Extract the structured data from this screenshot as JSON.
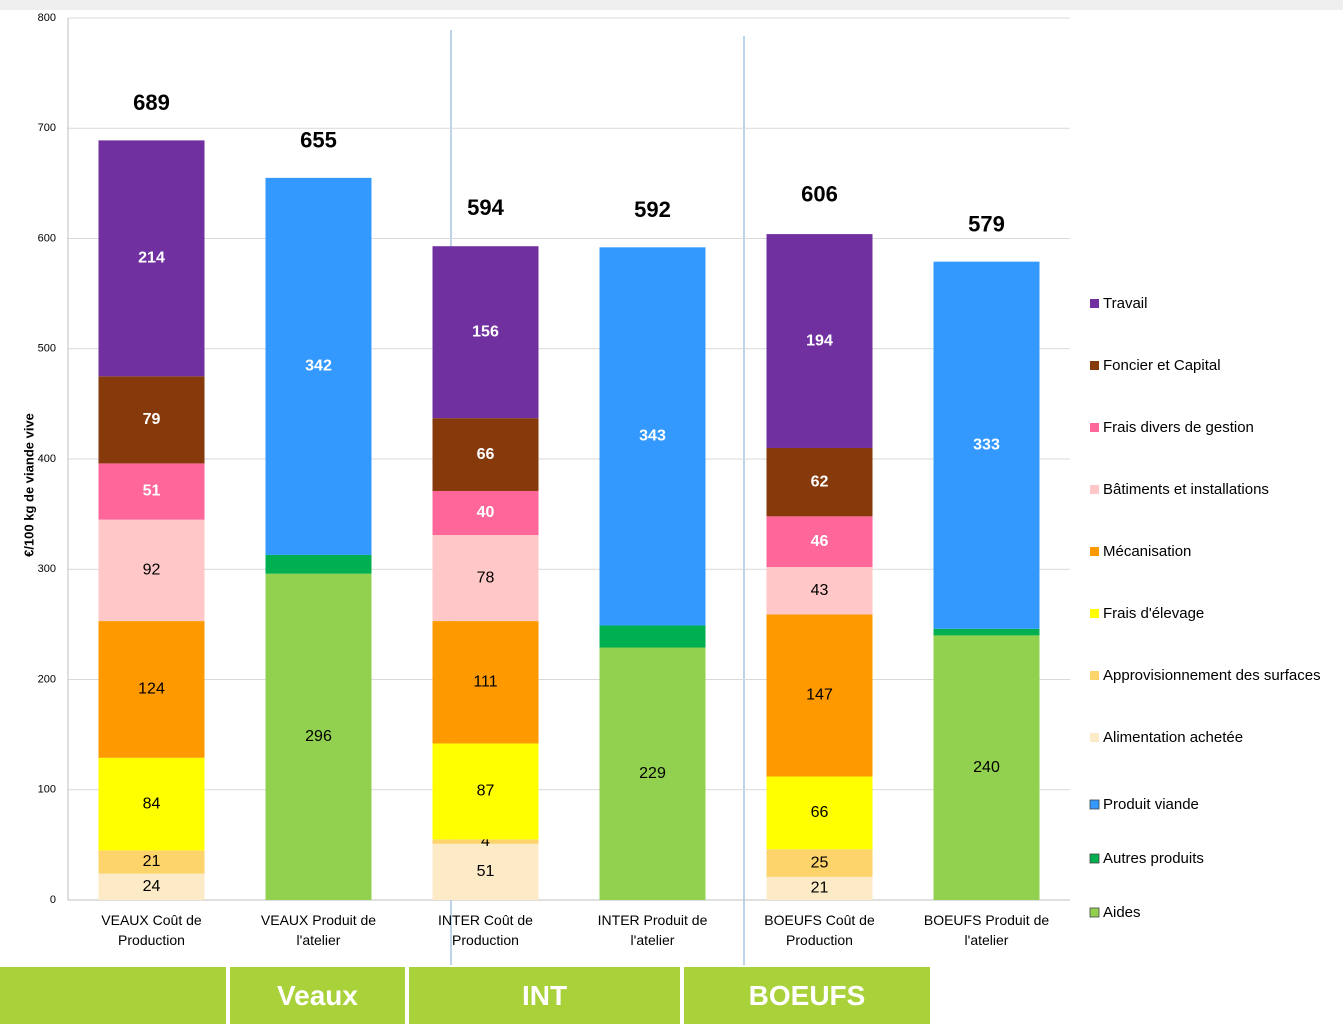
{
  "chart_data": {
    "type": "stacked_bar",
    "y_label": "€/100 kg de viande vive",
    "categories": [
      "VEAUX Coût de Production",
      "VEAUX Produit de l'atelier",
      "INTER Coût de Production",
      "INTER Produit de l'atelier",
      "BOEUFS Coût de Production",
      "BOEUFS Produit de l'atelier"
    ],
    "totals": [
      689,
      655,
      594,
      592,
      606,
      579
    ],
    "series": [
      {
        "name": "Alimentation achetée",
        "color": "#fdebc8",
        "label_color": "#000000",
        "values": [
          24,
          null,
          51,
          null,
          21,
          null
        ]
      },
      {
        "name": "Approvisionnement des surfaces",
        "color": "#fdd36b",
        "label_color": "#000000",
        "values": [
          21,
          null,
          4,
          null,
          25,
          null
        ]
      },
      {
        "name": "Frais d'élevage",
        "color": "#ffff00",
        "label_color": "#000000",
        "values": [
          84,
          null,
          87,
          null,
          66,
          null
        ]
      },
      {
        "name": "Mécanisation",
        "color": "#ff9900",
        "label_color": "#000000",
        "values": [
          124,
          null,
          111,
          null,
          147,
          null
        ]
      },
      {
        "name": "Bâtiments et installations",
        "color": "#ffc7c7",
        "label_color": "#000000",
        "values": [
          92,
          null,
          78,
          null,
          43,
          null
        ]
      },
      {
        "name": "Frais divers de gestion",
        "color": "#ff6699",
        "label_color": "#ffffff",
        "values": [
          51,
          null,
          40,
          null,
          46,
          null
        ]
      },
      {
        "name": "Foncier et Capital",
        "color": "#86390a",
        "label_color": "#ffffff",
        "values": [
          79,
          null,
          66,
          null,
          62,
          null
        ]
      },
      {
        "name": "Travail",
        "color": "#7030a0",
        "label_color": "#ffffff",
        "values": [
          214,
          null,
          156,
          null,
          194,
          null
        ]
      },
      {
        "name": "Aides",
        "color": "#92d050",
        "label_color": "#000000",
        "values": [
          null,
          296,
          null,
          229,
          null,
          240
        ]
      },
      {
        "name": "Autres produits",
        "color": "#00b050",
        "show_labels": false,
        "values": [
          null,
          17,
          null,
          20,
          null,
          6
        ]
      },
      {
        "name": "Produit viande",
        "color": "#3399ff",
        "label_color": "#ffffff",
        "values": [
          null,
          342,
          null,
          343,
          null,
          333
        ]
      }
    ],
    "ylim": [
      0,
      800
    ],
    "yticks": [
      0,
      100,
      200,
      300,
      400,
      500,
      600,
      700,
      800
    ],
    "grid": true,
    "groups": [
      "Veaux",
      "INT",
      "BOEUFS"
    ]
  }
}
